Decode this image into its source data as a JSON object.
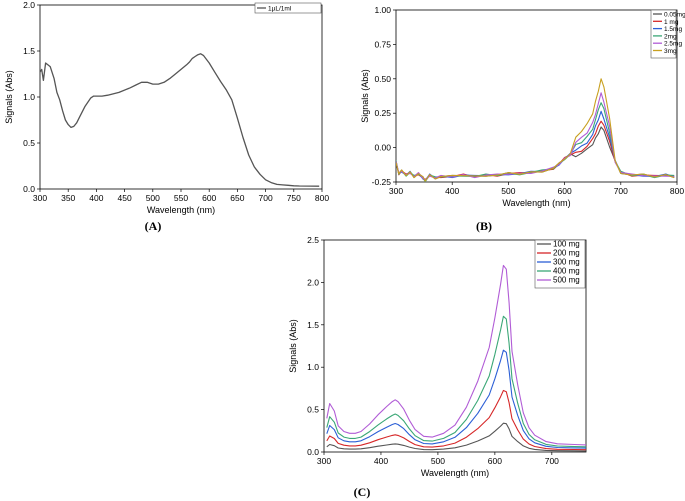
{
  "chart_data": [
    {
      "id": "A",
      "type": "line",
      "panel_label": "(A)",
      "xlabel": "Wavelength (nm)",
      "ylabel": "Signals (Abs)",
      "xlim": [
        300,
        800
      ],
      "ylim": [
        0,
        2.0
      ],
      "xticks": [
        300,
        350,
        400,
        450,
        500,
        550,
        600,
        650,
        700,
        750,
        800
      ],
      "yticks": [
        0.0,
        0.5,
        1.0,
        1.5,
        2.0
      ],
      "ytick_labels": [
        "0.0",
        "0.5",
        "1.0",
        "1.5",
        "2.0"
      ],
      "legend_position": "top-right",
      "series": [
        {
          "name": "1µL/1ml",
          "color": "#555555",
          "x": [
            300,
            303,
            306,
            310,
            318,
            325,
            330,
            335,
            340,
            345,
            350,
            355,
            360,
            365,
            370,
            380,
            390,
            395,
            400,
            410,
            420,
            440,
            460,
            470,
            480,
            490,
            500,
            510,
            520,
            530,
            540,
            550,
            560,
            565,
            570,
            575,
            580,
            585,
            590,
            600,
            610,
            620,
            630,
            640,
            650,
            660,
            670,
            680,
            690,
            700,
            710,
            720,
            730,
            740,
            750,
            760,
            780,
            795
          ],
          "y": [
            1.27,
            1.3,
            1.18,
            1.37,
            1.33,
            1.2,
            1.05,
            0.97,
            0.85,
            0.75,
            0.7,
            0.67,
            0.68,
            0.72,
            0.78,
            0.9,
            0.99,
            1.01,
            1.01,
            1.01,
            1.02,
            1.05,
            1.1,
            1.13,
            1.16,
            1.16,
            1.14,
            1.14,
            1.16,
            1.2,
            1.25,
            1.3,
            1.35,
            1.38,
            1.42,
            1.44,
            1.46,
            1.47,
            1.45,
            1.37,
            1.27,
            1.17,
            1.08,
            0.97,
            0.77,
            0.56,
            0.37,
            0.24,
            0.16,
            0.1,
            0.07,
            0.05,
            0.045,
            0.04,
            0.035,
            0.033,
            0.031,
            0.03
          ]
        }
      ]
    },
    {
      "id": "B",
      "type": "line",
      "panel_label": "(B)",
      "xlabel": "Wavelength (nm)",
      "ylabel": "Signals (Abs)",
      "xlim": [
        300,
        800
      ],
      "ylim": [
        -0.25,
        1.0
      ],
      "xticks": [
        300,
        400,
        500,
        600,
        700,
        800
      ],
      "yticks": [
        -0.25,
        0.0,
        0.25,
        0.5,
        0.75,
        1.0
      ],
      "ytick_labels": [
        "-0.25",
        "0.00",
        "0.25",
        "0.50",
        "0.75",
        "1.00"
      ],
      "legend_position": "top-right",
      "x": [
        300,
        305,
        310,
        318,
        325,
        332,
        340,
        348,
        352,
        360,
        370,
        380,
        400,
        420,
        440,
        460,
        480,
        500,
        520,
        540,
        560,
        580,
        590,
        600,
        610,
        620,
        630,
        640,
        650,
        655,
        660,
        665,
        670,
        680,
        690,
        700,
        720,
        740,
        760,
        780,
        795
      ],
      "base": [
        -0.1,
        -0.19,
        -0.17,
        -0.2,
        -0.18,
        -0.21,
        -0.19,
        -0.22,
        -0.24,
        -0.2,
        -0.22,
        -0.21,
        -0.21,
        -0.2,
        -0.21,
        -0.2,
        -0.2,
        -0.19,
        -0.19,
        -0.18,
        -0.17,
        -0.15,
        -0.12,
        -0.08,
        -0.05,
        -0.03,
        -0.01,
        0.02,
        0.07,
        0.12,
        0.17,
        0.22,
        0.18,
        0.05,
        -0.1,
        -0.18,
        -0.2,
        -0.2,
        -0.21,
        -0.2,
        -0.21
      ],
      "series": [
        {
          "name": "0.05mg",
          "color": "#555555",
          "peak": 0.15
        },
        {
          "name": "1 mg",
          "color": "#d62728",
          "peak": 0.2
        },
        {
          "name": "1.5mg",
          "color": "#2c5fd6",
          "peak": 0.26
        },
        {
          "name": "2mg",
          "color": "#3aa776",
          "peak": 0.33
        },
        {
          "name": "2.5mg",
          "color": "#b15cd6",
          "peak": 0.39
        },
        {
          "name": "3mg",
          "color": "#c8a020",
          "peak": 0.5
        }
      ]
    },
    {
      "id": "C",
      "type": "line",
      "panel_label": "(C)",
      "xlabel": "Wavelength (nm)",
      "ylabel": "Signals (Abs)",
      "xlim": [
        300,
        760
      ],
      "ylim": [
        0,
        2.5
      ],
      "xticks": [
        300,
        400,
        500,
        600,
        700
      ],
      "yticks": [
        0.0,
        0.5,
        1.0,
        1.5,
        2.0,
        2.5
      ],
      "ytick_labels": [
        "0.0",
        "0.5",
        "1.0",
        "1.5",
        "2.0",
        "2.5"
      ],
      "legend_position": "top-right",
      "x": [
        305,
        310,
        318,
        325,
        335,
        345,
        355,
        365,
        380,
        395,
        410,
        420,
        425,
        430,
        440,
        450,
        460,
        475,
        490,
        510,
        530,
        550,
        570,
        590,
        600,
        610,
        615,
        620,
        625,
        630,
        640,
        650,
        660,
        670,
        690,
        710,
        740,
        760
      ],
      "base": [
        0.9,
        1.3,
        1.1,
        0.7,
        0.55,
        0.5,
        0.5,
        0.55,
        0.75,
        1.0,
        1.22,
        1.35,
        1.4,
        1.35,
        1.15,
        0.85,
        0.6,
        0.42,
        0.4,
        0.5,
        0.72,
        1.2,
        1.9,
        2.8,
        3.6,
        4.5,
        5.0,
        4.9,
        4.0,
        2.7,
        1.8,
        1.05,
        0.65,
        0.45,
        0.28,
        0.22,
        0.2,
        0.19
      ],
      "series": [
        {
          "name": "100 mg",
          "color": "#555555",
          "scale": 0.068,
          "offset": 0.0
        },
        {
          "name": "200 mg",
          "color": "#d62728",
          "scale": 0.145,
          "offset": 0.0
        },
        {
          "name": "300 mg",
          "color": "#2c5fd6",
          "scale": 0.24,
          "offset": 0.0
        },
        {
          "name": "400 mg",
          "color": "#3aa776",
          "scale": 0.32,
          "offset": 0.0
        },
        {
          "name": "500 mg",
          "color": "#b15cd6",
          "scale": 0.44,
          "offset": 0.0
        }
      ]
    }
  ]
}
